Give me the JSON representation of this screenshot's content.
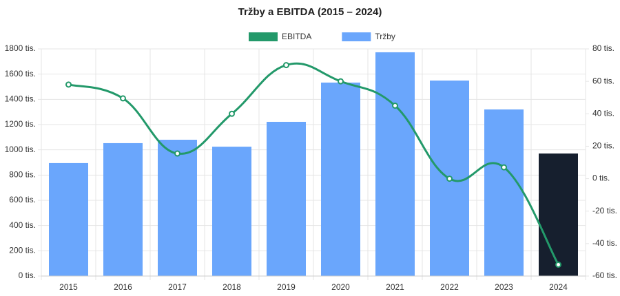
{
  "chart_data": {
    "type": "bar-line",
    "title": "Tržby a EBITDA (2015 – 2024)",
    "categories": [
      "2015",
      "2016",
      "2017",
      "2018",
      "2019",
      "2020",
      "2021",
      "2022",
      "2023",
      "2024"
    ],
    "series": [
      {
        "name": "EBITDA",
        "type": "line",
        "axis": "y2",
        "color": "#23996a",
        "values": [
          58,
          49.5,
          15.5,
          40,
          70,
          60,
          45,
          0,
          7,
          -53
        ]
      },
      {
        "name": "Tržby",
        "type": "bar",
        "color": "#6aa6fc",
        "colors": [
          "#6aa6fc",
          "#6aa6fc",
          "#6aa6fc",
          "#6aa6fc",
          "#6aa6fc",
          "#6aa6fc",
          "#6aa6fc",
          "#6aa6fc",
          "#6aa6fc",
          "#161f2e"
        ],
        "values": [
          895,
          1053,
          1080,
          1025,
          1222,
          1533,
          1773,
          1549,
          1320,
          971
        ]
      }
    ],
    "ylim": [
      0,
      1800
    ],
    "yticks": [
      {
        "value": 0,
        "label": "0 tis."
      },
      {
        "value": 200,
        "label": "200 tis."
      },
      {
        "value": 400,
        "label": "400 tis."
      },
      {
        "value": 600,
        "label": "600 tis."
      },
      {
        "value": 800,
        "label": "800 tis."
      },
      {
        "value": 1000,
        "label": "1000 tis."
      },
      {
        "value": 1200,
        "label": "1200 tis."
      },
      {
        "value": 1400,
        "label": "1400 tis."
      },
      {
        "value": 1600,
        "label": "1600 tis."
      },
      {
        "value": 1800,
        "label": "1800 tis."
      }
    ],
    "y2lim": [
      -60,
      80
    ],
    "y2ticks": [
      {
        "value": -60,
        "label": "-60 tis."
      },
      {
        "value": -40,
        "label": "-40 tis."
      },
      {
        "value": -20,
        "label": "-20 tis."
      },
      {
        "value": 0,
        "label": "0 tis."
      },
      {
        "value": 20,
        "label": "20 tis."
      },
      {
        "value": 40,
        "label": "40 tis."
      },
      {
        "value": 60,
        "label": "60 tis."
      },
      {
        "value": 80,
        "label": "80 tis."
      }
    ],
    "grid": true,
    "legend": "top"
  }
}
